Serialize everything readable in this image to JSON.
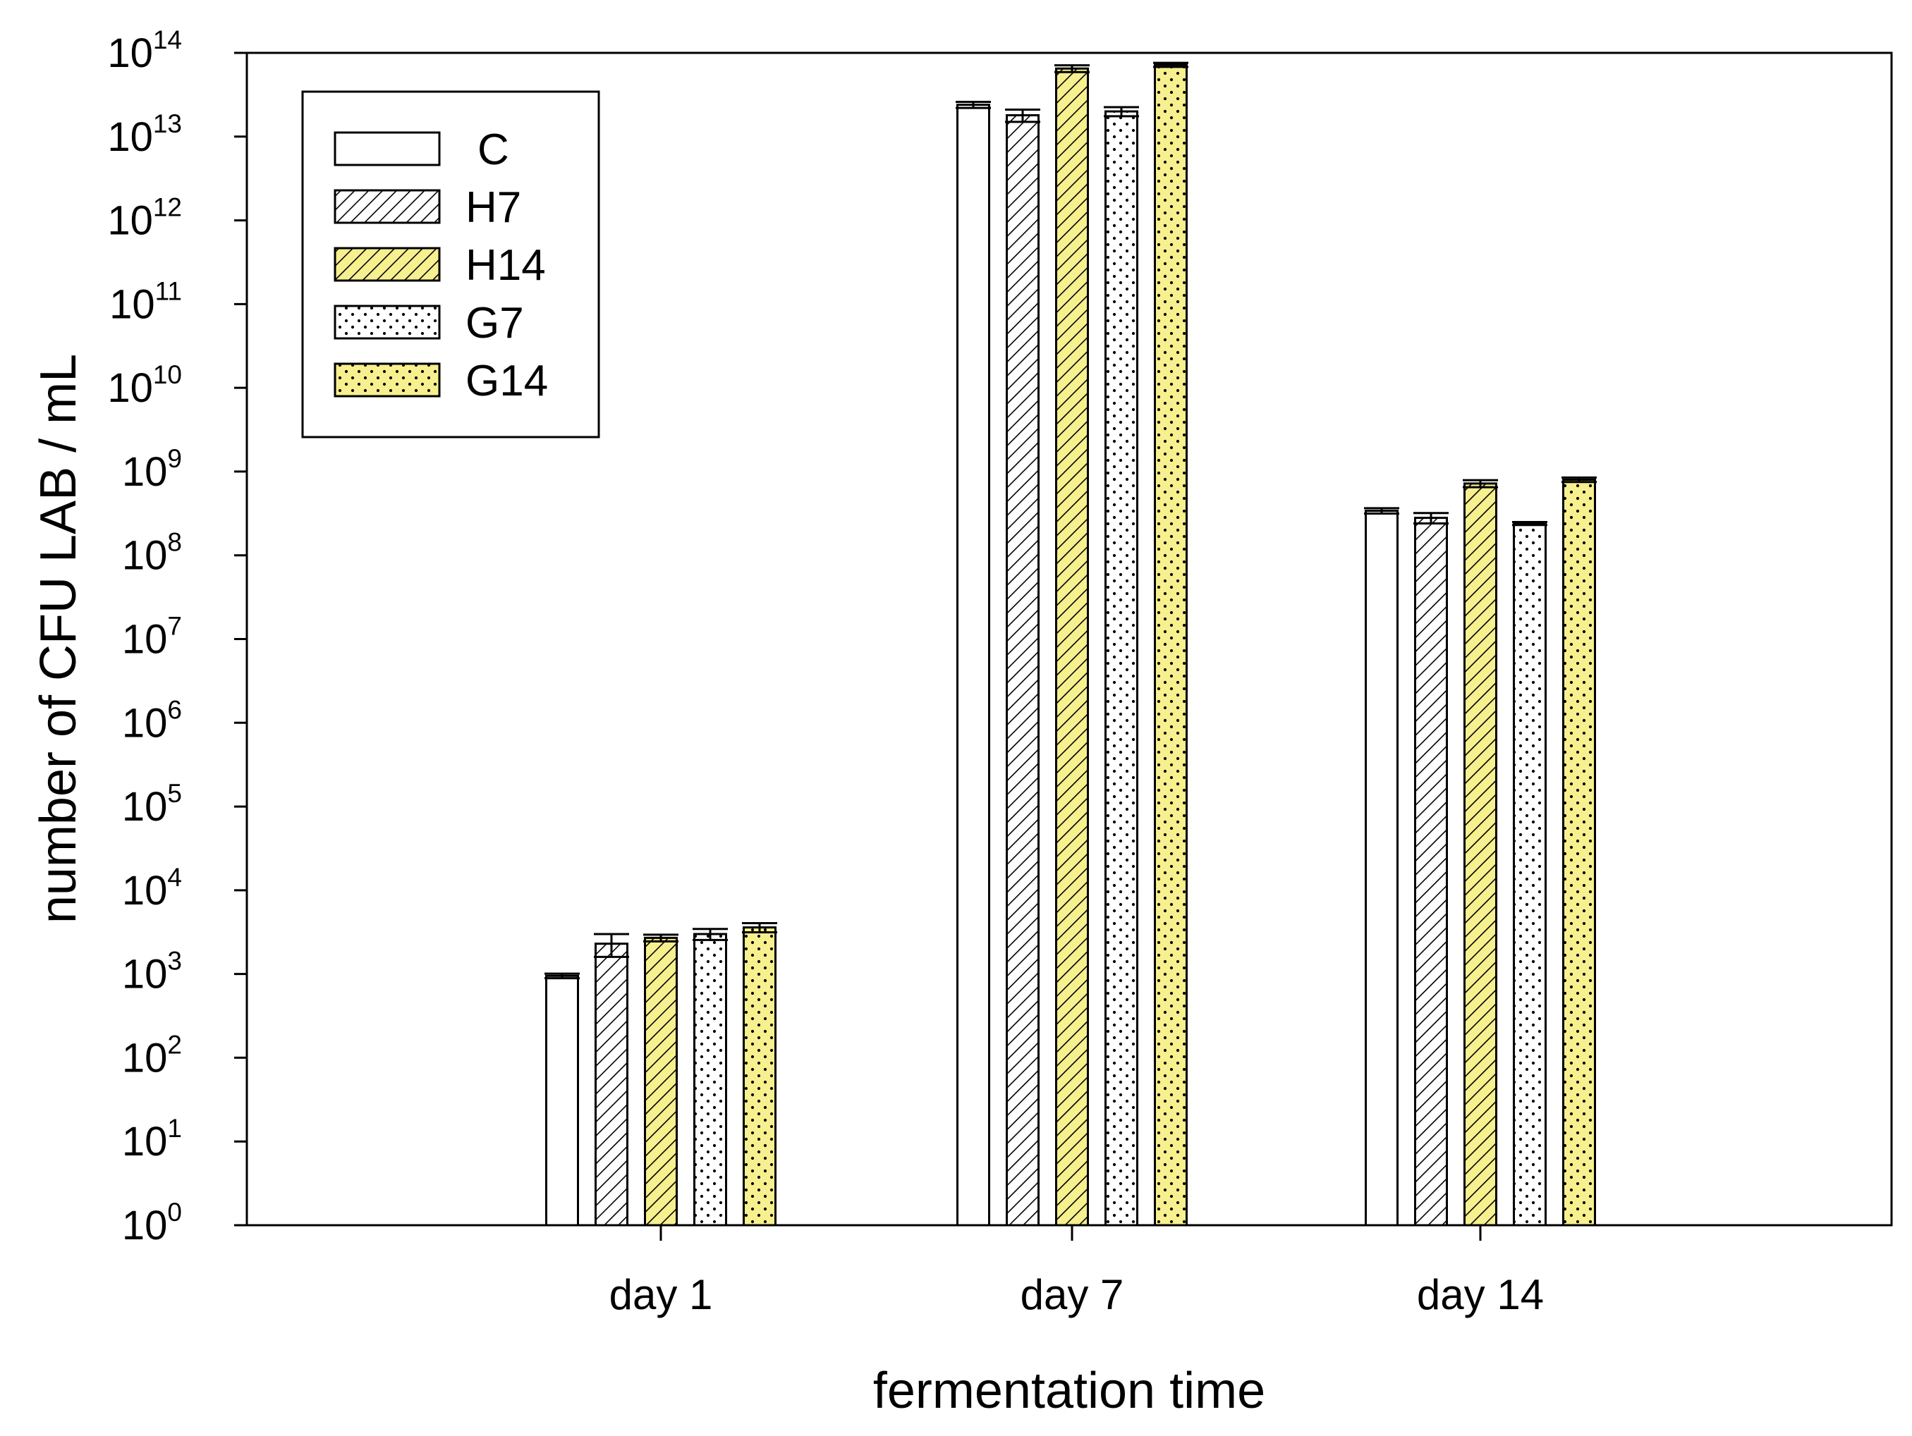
{
  "chart_data": {
    "type": "bar",
    "title": "",
    "xlabel": "fermentation time",
    "ylabel": "number of CFU LAB / mL",
    "yscale": "log",
    "ylim": [
      1,
      100000000000000
    ],
    "y_ticks": [
      {
        "base": "10",
        "exp": "0",
        "value": 1
      },
      {
        "base": "10",
        "exp": "1",
        "value": 10
      },
      {
        "base": "10",
        "exp": "2",
        "value": 100
      },
      {
        "base": "10",
        "exp": "3",
        "value": 1000
      },
      {
        "base": "10",
        "exp": "4",
        "value": 10000
      },
      {
        "base": "10",
        "exp": "5",
        "value": 100000
      },
      {
        "base": "10",
        "exp": "6",
        "value": 1000000
      },
      {
        "base": "10",
        "exp": "7",
        "value": 10000000
      },
      {
        "base": "10",
        "exp": "8",
        "value": 100000000
      },
      {
        "base": "10",
        "exp": "9",
        "value": 1000000000
      },
      {
        "base": "10",
        "exp": "10",
        "value": 10000000000
      },
      {
        "base": "10",
        "exp": "11",
        "value": 100000000000
      },
      {
        "base": "10",
        "exp": "12",
        "value": 1000000000000
      },
      {
        "base": "10",
        "exp": "13",
        "value": 10000000000000
      },
      {
        "base": "10",
        "exp": "14",
        "value": 100000000000000
      }
    ],
    "categories": [
      "day 1",
      "day 7",
      "day 14"
    ],
    "legend_position": "top-left",
    "grid": false,
    "series": [
      {
        "name": "C",
        "fill": "#ffffff",
        "pattern": "none",
        "values": [
          950,
          24000000000000,
          340000000
        ],
        "errors": [
          60,
          2000000000000,
          25000000
        ]
      },
      {
        "name": "H7",
        "fill": "#ffffff",
        "pattern": "hatch",
        "values": [
          2300,
          18000000000000,
          280000000
        ],
        "errors": [
          700,
          3000000000000,
          40000000
        ]
      },
      {
        "name": "H14",
        "fill": "#f7f08f",
        "pattern": "hatch",
        "values": [
          2700,
          65000000000000,
          720000000
        ],
        "errors": [
          250,
          6000000000000,
          70000000
        ]
      },
      {
        "name": "G7",
        "fill": "#ffffff",
        "pattern": "dots",
        "values": [
          3000,
          20000000000000,
          240000000
        ],
        "errors": [
          450,
          2500000000000,
          10000000
        ]
      },
      {
        "name": "G14",
        "fill": "#f7f08f",
        "pattern": "dots",
        "values": [
          3600,
          72000000000000,
          800000000
        ],
        "errors": [
          450,
          4000000000000,
          50000000
        ]
      }
    ]
  }
}
